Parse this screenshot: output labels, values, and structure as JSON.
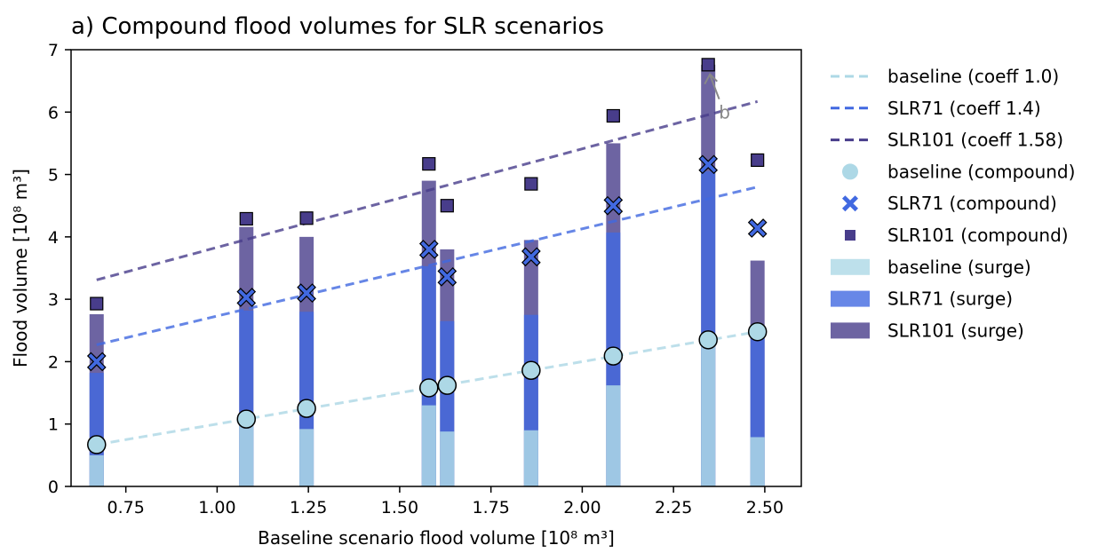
{
  "chart_data": {
    "type": "bar",
    "title": "a) Compound flood volumes for SLR scenarios",
    "xlabel": "Baseline scenario flood volume [10⁸ m³]",
    "ylabel": "Flood volume [10⁸ m³]",
    "xlim": [
      0.6,
      2.6
    ],
    "ylim": [
      0,
      7
    ],
    "xticks": [
      0.75,
      1.0,
      1.25,
      1.5,
      1.75,
      2.0,
      2.25,
      2.5
    ],
    "xtick_labels": [
      "0.75",
      "1.00",
      "1.25",
      "1.50",
      "1.75",
      "2.00",
      "2.25",
      "2.50"
    ],
    "yticks": [
      0,
      1,
      2,
      3,
      4,
      5,
      6,
      7
    ],
    "ytick_labels": [
      "0",
      "1",
      "2",
      "3",
      "4",
      "5",
      "6",
      "7"
    ],
    "grid": false,
    "legend_position": "outside-right",
    "x": [
      0.67,
      1.08,
      1.245,
      1.58,
      1.63,
      1.86,
      2.085,
      2.345,
      2.48
    ],
    "bar_series": [
      {
        "name": "baseline (surge)",
        "color": "#add8e6",
        "values": [
          0.5,
          1.0,
          0.92,
          1.3,
          0.88,
          0.9,
          1.62,
          2.25,
          0.79
        ]
      },
      {
        "name": "SLR71 (surge)",
        "color": "#4169e1",
        "values": [
          1.82,
          2.82,
          2.8,
          3.53,
          2.65,
          2.75,
          4.07,
          5.05,
          2.5
        ]
      },
      {
        "name": "SLR101 (surge)",
        "color": "#483d8b",
        "values": [
          2.76,
          4.16,
          4.0,
          4.9,
          3.8,
          3.95,
          5.5,
          6.76,
          3.62
        ]
      }
    ],
    "scatter_series": [
      {
        "name": "baseline (compound)",
        "marker": "circle",
        "color": "#add8e6",
        "values": [
          0.67,
          1.08,
          1.25,
          1.58,
          1.62,
          1.86,
          2.09,
          2.35,
          2.48
        ]
      },
      {
        "name": "SLR71 (compound)",
        "marker": "x",
        "color": "#4169e1",
        "values": [
          2.0,
          3.03,
          3.1,
          3.8,
          3.36,
          3.68,
          4.5,
          5.16,
          4.14
        ]
      },
      {
        "name": "SLR101 (compound)",
        "marker": "square",
        "color": "#483d8b",
        "values": [
          2.93,
          4.29,
          4.3,
          5.17,
          4.5,
          4.85,
          5.94,
          6.76,
          5.23
        ]
      }
    ],
    "line_series": [
      {
        "name": "baseline (coeff 1.0)",
        "color": "#add8e6",
        "x": [
          0.67,
          2.48
        ],
        "y": [
          0.67,
          2.48
        ]
      },
      {
        "name": "SLR71 (coeff 1.4)",
        "color": "#4169e1",
        "x": [
          0.67,
          2.48
        ],
        "y": [
          2.27,
          4.8
        ]
      },
      {
        "name": "SLR101 (coeff 1.58)",
        "color": "#483d8b",
        "x": [
          0.67,
          2.48
        ],
        "y": [
          3.31,
          6.17
        ]
      }
    ],
    "annotation": {
      "text": "b",
      "point": [
        2.35,
        6.62
      ],
      "text_at": [
        2.38,
        5.98
      ],
      "color": "#888888"
    }
  }
}
